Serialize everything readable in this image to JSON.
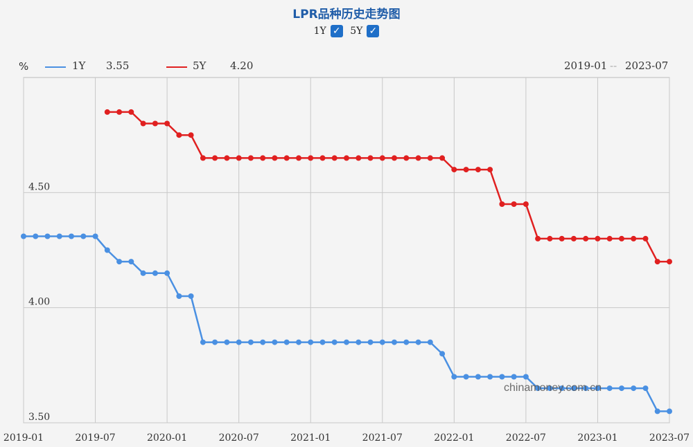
{
  "title": "LPR品种历史走势图",
  "toggles": [
    {
      "label": "1Y",
      "checked": true,
      "check_glyph": "✓"
    },
    {
      "label": "5Y",
      "checked": true,
      "check_glyph": "✓"
    }
  ],
  "legend": {
    "unit": "%",
    "items": [
      {
        "name": "1Y",
        "value": "3.55",
        "color": "#4a90e2"
      },
      {
        "name": "5Y",
        "value": "4.20",
        "color": "#e02020"
      }
    ],
    "range_start": "2019-01",
    "range_sep": "--",
    "range_end": "2023-07"
  },
  "watermark": "chinamoney.com.cn",
  "chart_data": {
    "type": "line",
    "x_tick_labels": [
      "2019-01",
      "2019-07",
      "2020-01",
      "2020-07",
      "2021-01",
      "2021-07",
      "2022-01",
      "2022-07",
      "2023-01",
      "2023-07"
    ],
    "y_tick_labels": [
      "3.50",
      "4.00",
      "4.50"
    ],
    "ylim": [
      3.5,
      5.0
    ],
    "grid": true,
    "series": [
      {
        "name": "1Y",
        "color": "#4a90e2",
        "points": [
          [
            "2019-01",
            4.31
          ],
          [
            "2019-02",
            4.31
          ],
          [
            "2019-03",
            4.31
          ],
          [
            "2019-04",
            4.31
          ],
          [
            "2019-05",
            4.31
          ],
          [
            "2019-06",
            4.31
          ],
          [
            "2019-07",
            4.31
          ],
          [
            "2019-08",
            4.25
          ],
          [
            "2019-09",
            4.2
          ],
          [
            "2019-10",
            4.2
          ],
          [
            "2019-11",
            4.15
          ],
          [
            "2019-12",
            4.15
          ],
          [
            "2020-01",
            4.15
          ],
          [
            "2020-02",
            4.05
          ],
          [
            "2020-03",
            4.05
          ],
          [
            "2020-04",
            3.85
          ],
          [
            "2020-05",
            3.85
          ],
          [
            "2020-06",
            3.85
          ],
          [
            "2020-07",
            3.85
          ],
          [
            "2020-08",
            3.85
          ],
          [
            "2020-09",
            3.85
          ],
          [
            "2020-10",
            3.85
          ],
          [
            "2020-11",
            3.85
          ],
          [
            "2020-12",
            3.85
          ],
          [
            "2021-01",
            3.85
          ],
          [
            "2021-02",
            3.85
          ],
          [
            "2021-03",
            3.85
          ],
          [
            "2021-04",
            3.85
          ],
          [
            "2021-05",
            3.85
          ],
          [
            "2021-06",
            3.85
          ],
          [
            "2021-07",
            3.85
          ],
          [
            "2021-08",
            3.85
          ],
          [
            "2021-09",
            3.85
          ],
          [
            "2021-10",
            3.85
          ],
          [
            "2021-11",
            3.85
          ],
          [
            "2021-12",
            3.8
          ],
          [
            "2022-01",
            3.7
          ],
          [
            "2022-02",
            3.7
          ],
          [
            "2022-03",
            3.7
          ],
          [
            "2022-04",
            3.7
          ],
          [
            "2022-05",
            3.7
          ],
          [
            "2022-06",
            3.7
          ],
          [
            "2022-07",
            3.7
          ],
          [
            "2022-08",
            3.65
          ],
          [
            "2022-09",
            3.65
          ],
          [
            "2022-10",
            3.65
          ],
          [
            "2022-11",
            3.65
          ],
          [
            "2022-12",
            3.65
          ],
          [
            "2023-01",
            3.65
          ],
          [
            "2023-02",
            3.65
          ],
          [
            "2023-03",
            3.65
          ],
          [
            "2023-04",
            3.65
          ],
          [
            "2023-05",
            3.65
          ],
          [
            "2023-06",
            3.55
          ],
          [
            "2023-07",
            3.55
          ]
        ]
      },
      {
        "name": "5Y",
        "color": "#e02020",
        "points": [
          [
            "2019-08",
            4.85
          ],
          [
            "2019-09",
            4.85
          ],
          [
            "2019-10",
            4.85
          ],
          [
            "2019-11",
            4.8
          ],
          [
            "2019-12",
            4.8
          ],
          [
            "2020-01",
            4.8
          ],
          [
            "2020-02",
            4.75
          ],
          [
            "2020-03",
            4.75
          ],
          [
            "2020-04",
            4.65
          ],
          [
            "2020-05",
            4.65
          ],
          [
            "2020-06",
            4.65
          ],
          [
            "2020-07",
            4.65
          ],
          [
            "2020-08",
            4.65
          ],
          [
            "2020-09",
            4.65
          ],
          [
            "2020-10",
            4.65
          ],
          [
            "2020-11",
            4.65
          ],
          [
            "2020-12",
            4.65
          ],
          [
            "2021-01",
            4.65
          ],
          [
            "2021-02",
            4.65
          ],
          [
            "2021-03",
            4.65
          ],
          [
            "2021-04",
            4.65
          ],
          [
            "2021-05",
            4.65
          ],
          [
            "2021-06",
            4.65
          ],
          [
            "2021-07",
            4.65
          ],
          [
            "2021-08",
            4.65
          ],
          [
            "2021-09",
            4.65
          ],
          [
            "2021-10",
            4.65
          ],
          [
            "2021-11",
            4.65
          ],
          [
            "2021-12",
            4.65
          ],
          [
            "2022-01",
            4.6
          ],
          [
            "2022-02",
            4.6
          ],
          [
            "2022-03",
            4.6
          ],
          [
            "2022-04",
            4.6
          ],
          [
            "2022-05",
            4.45
          ],
          [
            "2022-06",
            4.45
          ],
          [
            "2022-07",
            4.45
          ],
          [
            "2022-08",
            4.3
          ],
          [
            "2022-09",
            4.3
          ],
          [
            "2022-10",
            4.3
          ],
          [
            "2022-11",
            4.3
          ],
          [
            "2022-12",
            4.3
          ],
          [
            "2023-01",
            4.3
          ],
          [
            "2023-02",
            4.3
          ],
          [
            "2023-03",
            4.3
          ],
          [
            "2023-04",
            4.3
          ],
          [
            "2023-05",
            4.3
          ],
          [
            "2023-06",
            4.2
          ],
          [
            "2023-07",
            4.2
          ]
        ]
      }
    ]
  }
}
